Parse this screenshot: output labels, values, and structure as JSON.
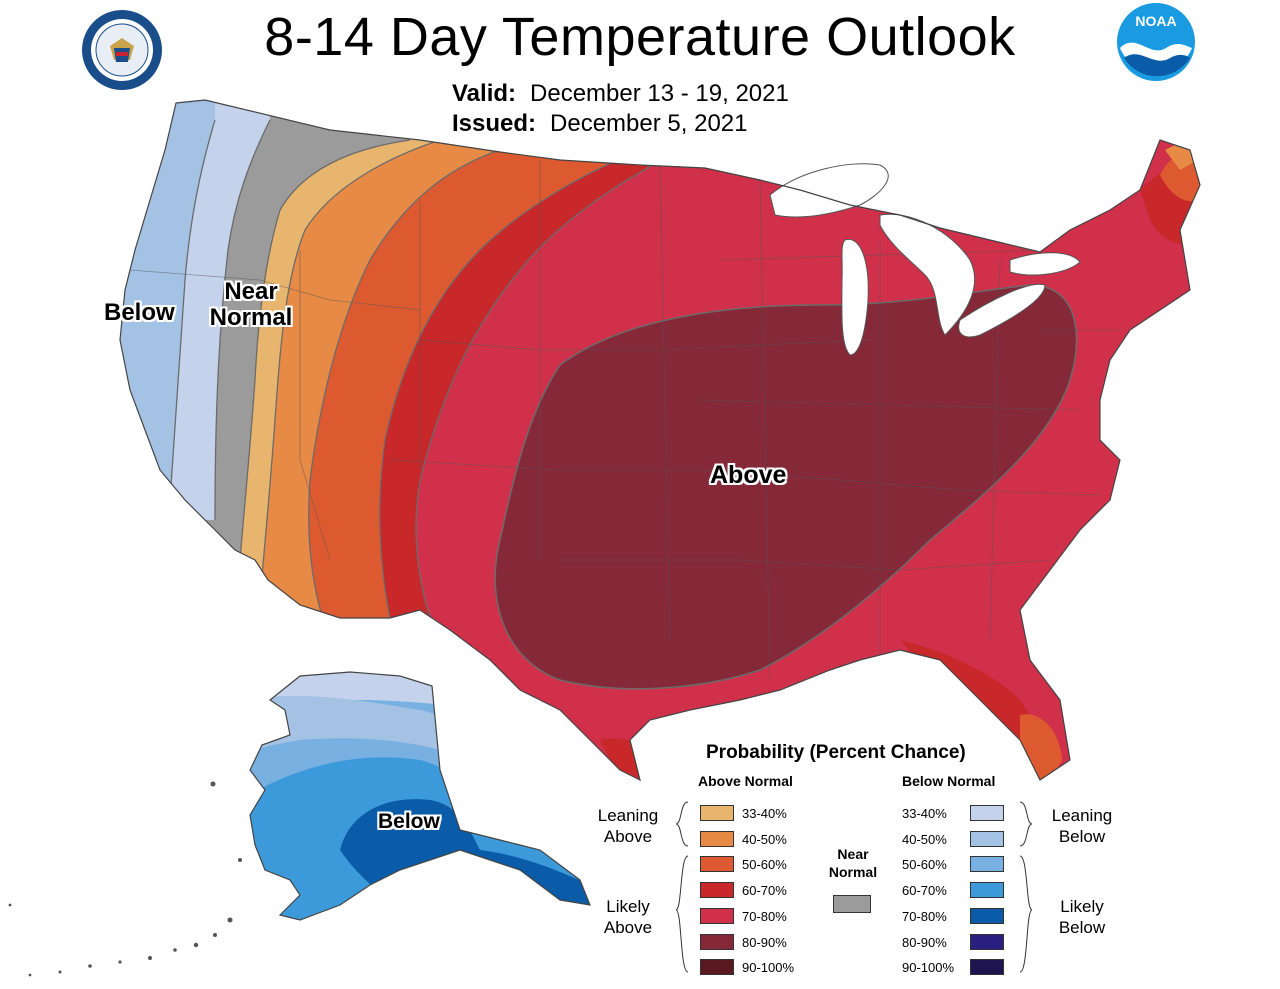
{
  "header": {
    "title": "8-14 Day Temperature Outlook",
    "valid_label": "Valid:",
    "valid_value": "December 13 - 19, 2021",
    "issued_label": "Issued:",
    "issued_value": "December 5, 2021"
  },
  "logos": {
    "doc": "department-of-commerce-seal",
    "noaa_text": "NOAA"
  },
  "map_labels": {
    "below_west": "Below",
    "near_normal_1": "Near",
    "near_normal_2": "Normal",
    "above": "Above",
    "below_alaska": "Below"
  },
  "legend": {
    "title": "Probability (Percent Chance)",
    "above_header": "Above Normal",
    "below_header": "Below Normal",
    "leaning_above": [
      "Leaning",
      "Above"
    ],
    "likely_above": [
      "Likely",
      "Above"
    ],
    "leaning_below": [
      "Leaning",
      "Below"
    ],
    "likely_below": [
      "Likely",
      "Below"
    ],
    "near_normal": [
      "Near",
      "Normal"
    ],
    "above_bins": [
      {
        "label": "33-40%",
        "color": "#E8B56E"
      },
      {
        "label": "40-50%",
        "color": "#E68A45"
      },
      {
        "label": "50-60%",
        "color": "#DD5A30"
      },
      {
        "label": "60-70%",
        "color": "#C8282A"
      },
      {
        "label": "70-80%",
        "color": "#D0304A"
      },
      {
        "label": "80-90%",
        "color": "#852838"
      },
      {
        "label": "90-100%",
        "color": "#5A1820"
      }
    ],
    "below_bins": [
      {
        "label": "33-40%",
        "color": "#C4D2EC"
      },
      {
        "label": "40-50%",
        "color": "#A4C2E4"
      },
      {
        "label": "50-60%",
        "color": "#78B0E2"
      },
      {
        "label": "60-70%",
        "color": "#3C9ADA"
      },
      {
        "label": "70-80%",
        "color": "#0A5CA8"
      },
      {
        "label": "80-90%",
        "color": "#2A1E80"
      },
      {
        "label": "90-100%",
        "color": "#1E1450"
      }
    ],
    "near_normal_color": "#9B9B9B"
  }
}
